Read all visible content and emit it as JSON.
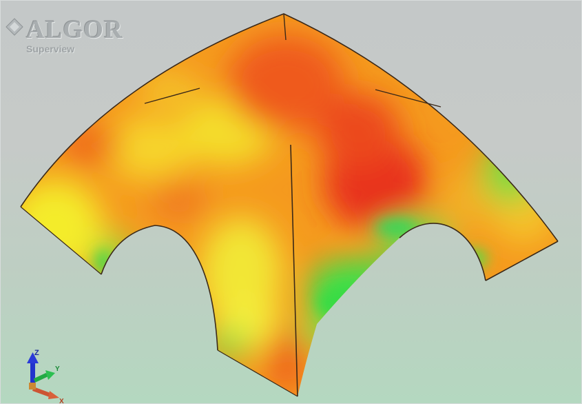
{
  "logo": {
    "brand": "ALGOR",
    "product": "Superview"
  },
  "triad": {
    "z_label": "Z",
    "y_label": "Y",
    "x_label": "X"
  },
  "icons": [
    "algor-diamond-icon",
    "axis-triad-icon"
  ],
  "colors": {
    "background_top": "#c4c8c8",
    "background_bottom": "#b4d8c0",
    "contour_high": "#e8321a",
    "contour_mid": "#f59a1e",
    "contour_yellow": "#f2e62a",
    "contour_low": "#3fe04a",
    "axis_z": "#2233cc",
    "axis_y": "#22aa44",
    "axis_x": "#cc5533"
  }
}
